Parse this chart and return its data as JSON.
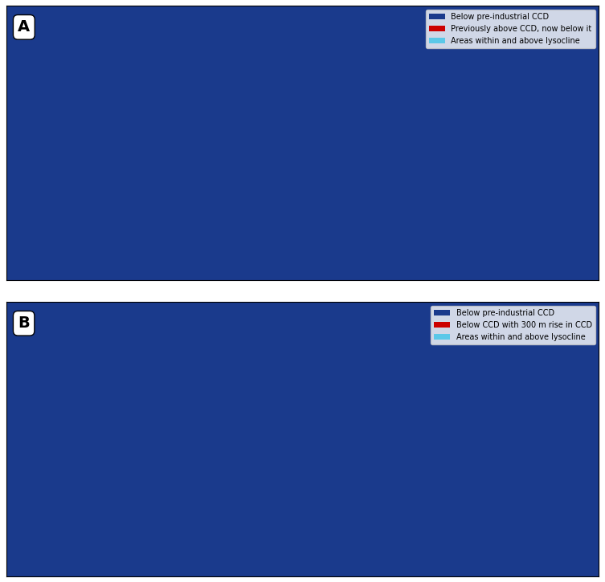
{
  "panel_A_label": "A",
  "panel_B_label": "B",
  "legend_A": {
    "items": [
      {
        "label": "Below pre-industrial CCD",
        "color": "#1a3a8c"
      },
      {
        "label": "Previously above CCD, now below it",
        "color": "#cc0000"
      },
      {
        "label": "Areas within and above lysocline",
        "color": "#5bc8e8"
      }
    ]
  },
  "legend_B": {
    "items": [
      {
        "label": "Below pre-industrial CCD",
        "color": "#1a3a8c"
      },
      {
        "label": "Below CCD with 300 m rise in CCD",
        "color": "#cc0000"
      },
      {
        "label": "Areas within and above lysocline",
        "color": "#5bc8e8"
      }
    ]
  },
  "ocean_color_light": "#5bc8e8",
  "ocean_color_deep": "#1a3a8c",
  "ocean_color_red": "#cc0000",
  "land_color": "#f0ece0",
  "background_color": "#ffffff",
  "border_color": "#333333",
  "panel_bg": "#d8f0f8",
  "contour_color": "#c8b850",
  "label_color": "#555577",
  "fig_width": 7.53,
  "fig_height": 7.25
}
